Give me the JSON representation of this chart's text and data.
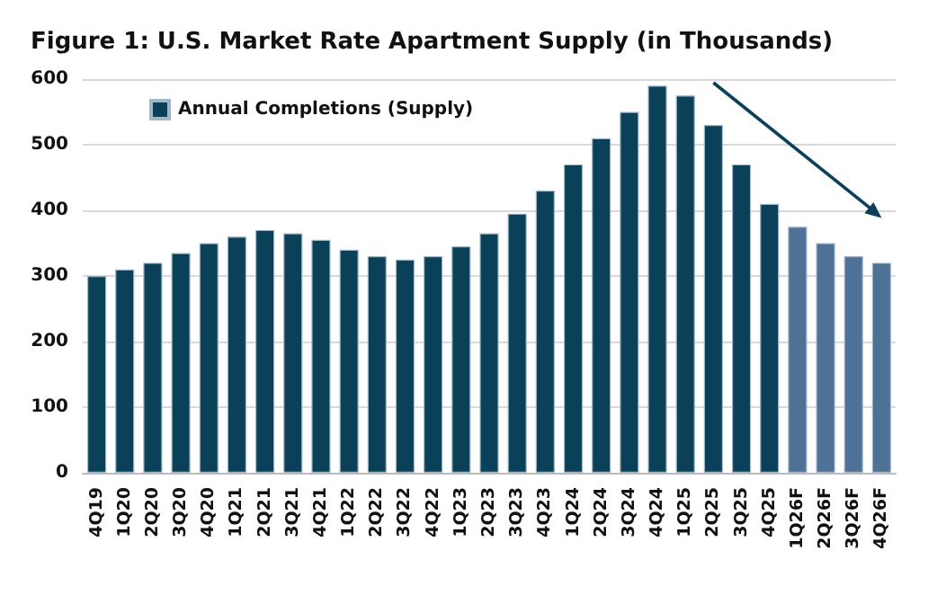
{
  "chart_data": {
    "type": "bar",
    "title": "Figure 1: U.S. Market Rate Apartment Supply (in Thousands)",
    "categories": [
      "4Q19",
      "1Q20",
      "2Q20",
      "3Q20",
      "4Q20",
      "1Q21",
      "2Q21",
      "3Q21",
      "4Q21",
      "1Q22",
      "2Q22",
      "3Q22",
      "4Q22",
      "1Q23",
      "2Q23",
      "3Q23",
      "4Q23",
      "1Q24",
      "2Q24",
      "3Q24",
      "4Q24",
      "1Q25",
      "2Q25",
      "3Q25",
      "4Q25",
      "1Q26F",
      "2Q26F",
      "3Q26F",
      "4Q26F"
    ],
    "series": [
      {
        "name": "Annual Completions (Supply)",
        "color": "#0b4059",
        "colors": [
          "#0b4059",
          "#0b4059",
          "#0b4059",
          "#0b4059",
          "#0b4059",
          "#0b4059",
          "#0b4059",
          "#0b4059",
          "#0b4059",
          "#0b4059",
          "#0b4059",
          "#0b4059",
          "#0b4059",
          "#0b4059",
          "#0b4059",
          "#0b4059",
          "#0b4059",
          "#0b4059",
          "#0b4059",
          "#0b4059",
          "#0b4059",
          "#0b4059",
          "#0b4059",
          "#0b4059",
          "#0b4059",
          "#4f7195",
          "#4f7195",
          "#4f7195",
          "#4f7195"
        ],
        "values": [
          300,
          310,
          320,
          335,
          350,
          360,
          370,
          365,
          355,
          340,
          330,
          325,
          330,
          345,
          365,
          395,
          430,
          470,
          510,
          550,
          590,
          575,
          530,
          470,
          410,
          375,
          350,
          330,
          320
        ]
      }
    ],
    "ylim": [
      0,
      600
    ],
    "yticks": [
      0,
      100,
      200,
      300,
      400,
      500,
      600
    ],
    "grid": "y",
    "legend": "top left"
  }
}
